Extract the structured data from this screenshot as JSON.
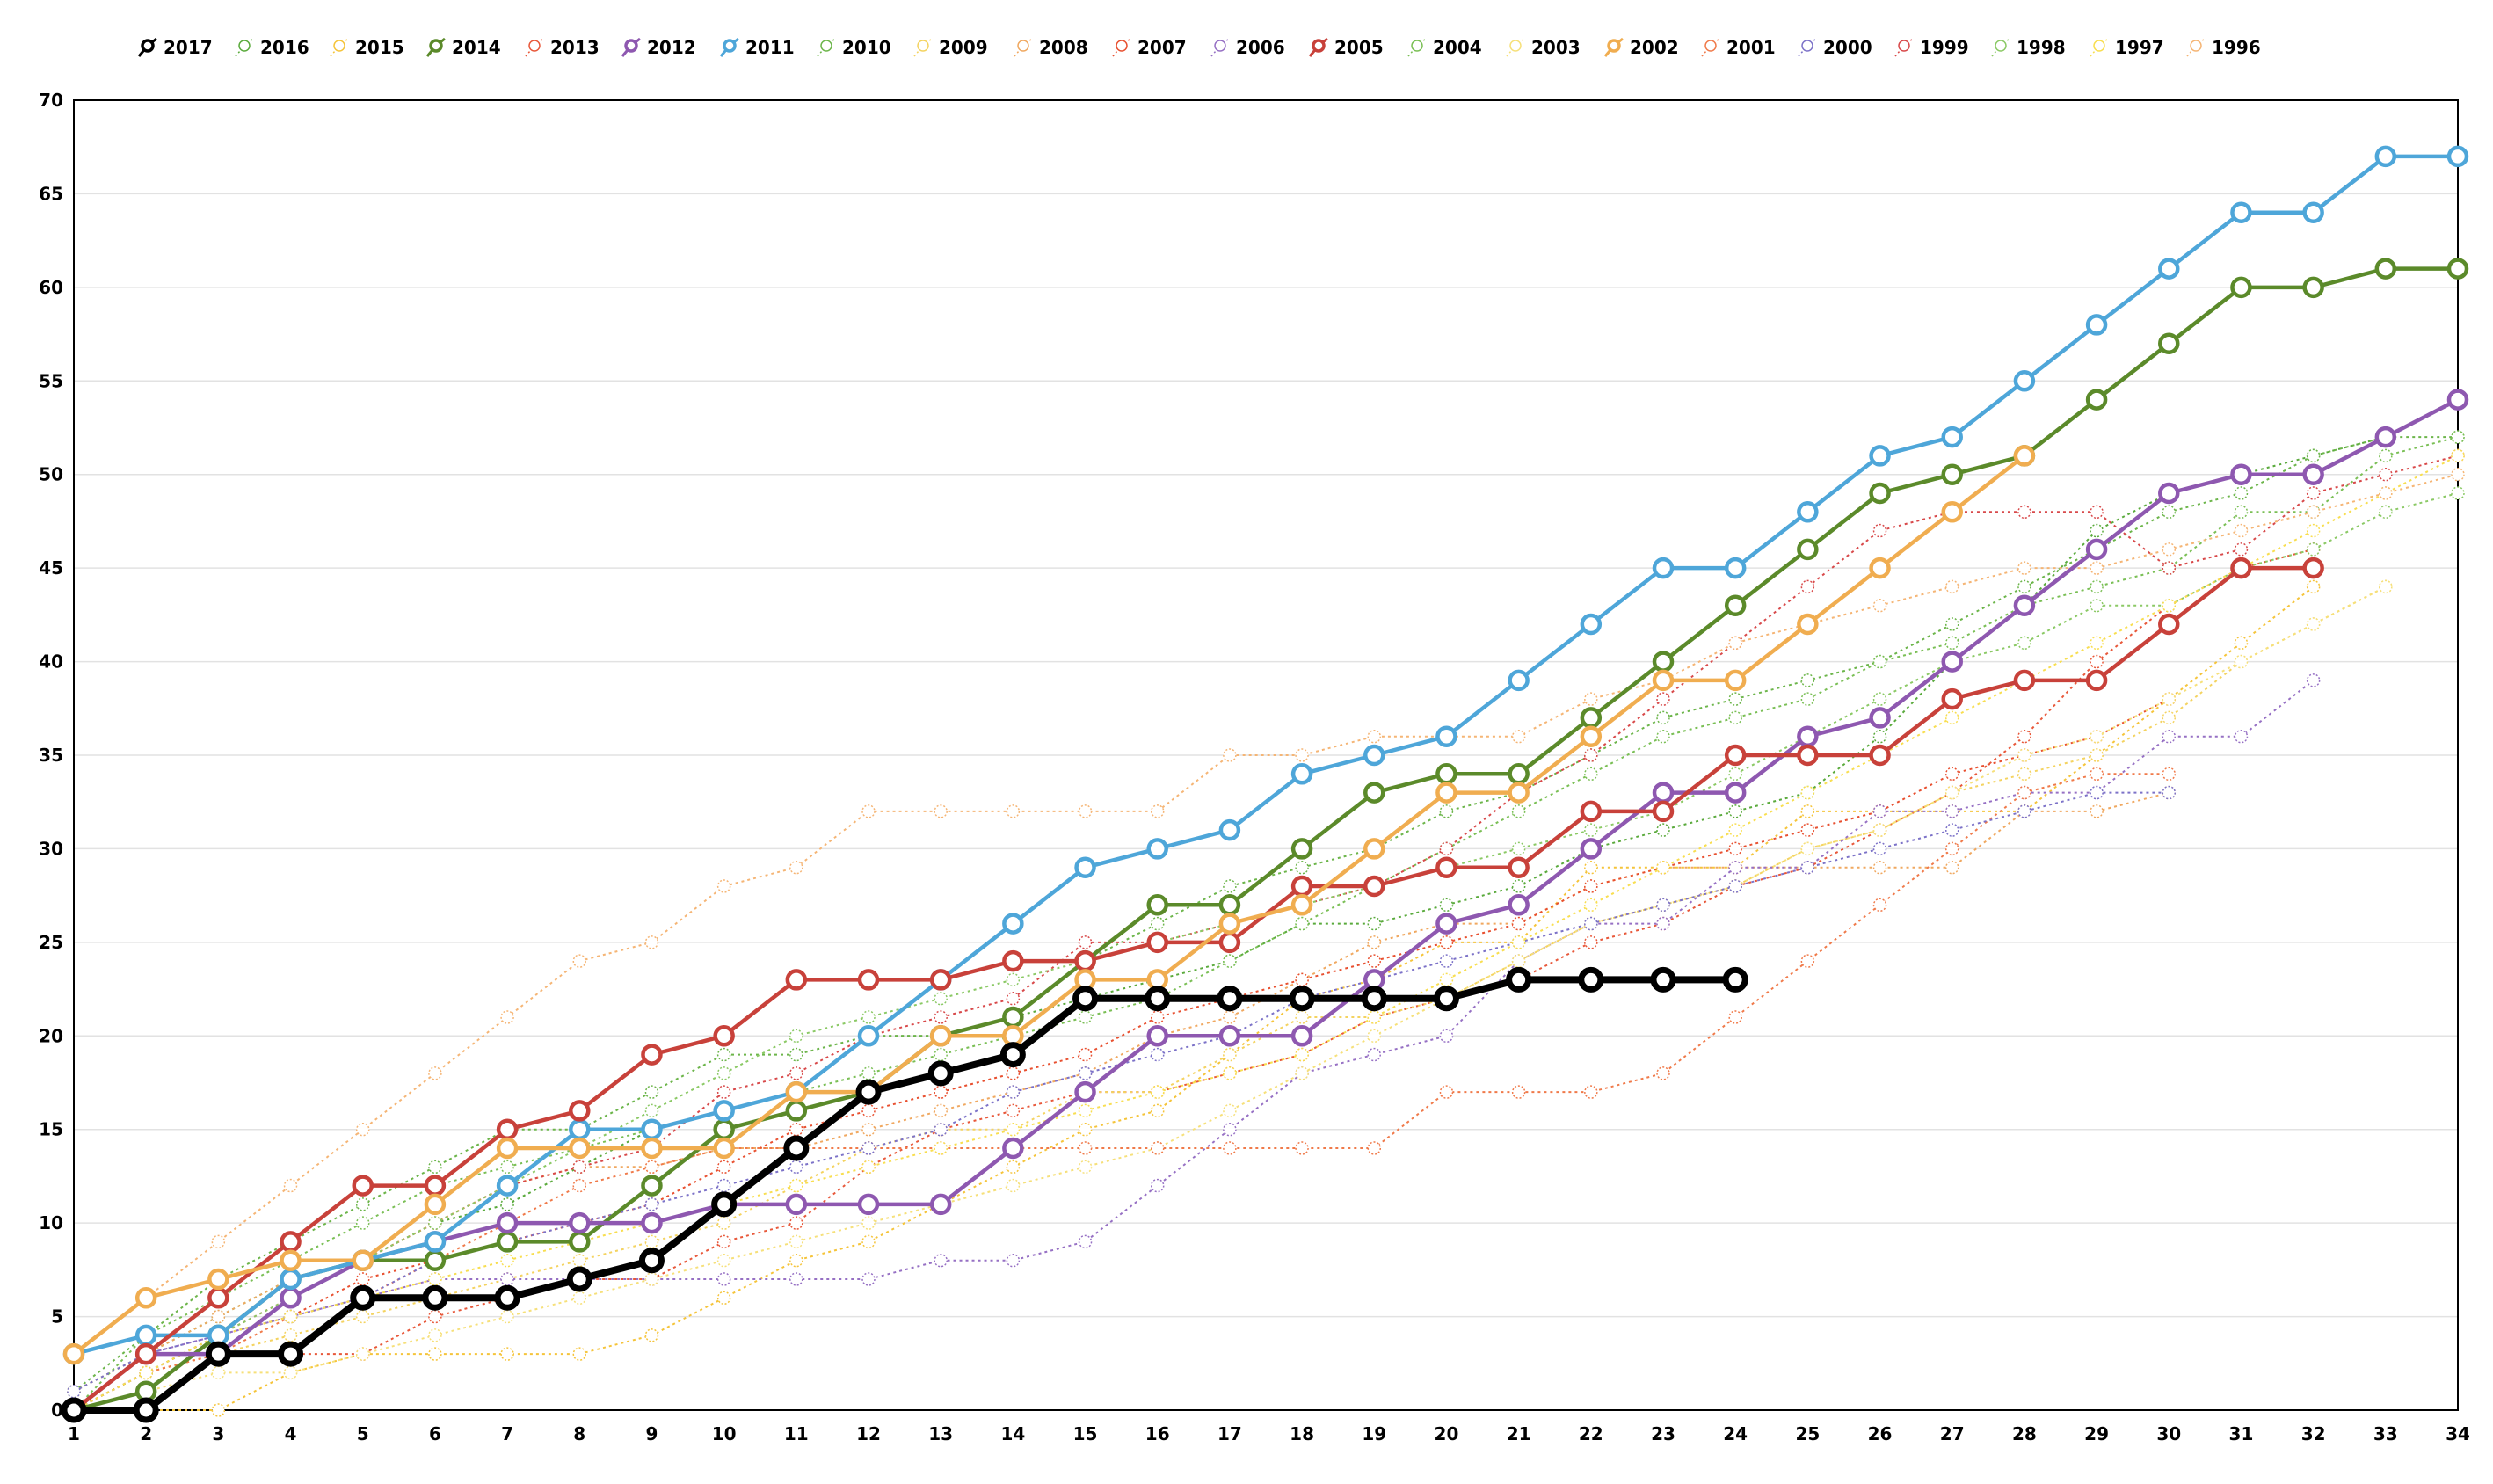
{
  "chart_data": {
    "type": "line",
    "title": "",
    "xlabel": "",
    "ylabel": "",
    "xlim": [
      1,
      34
    ],
    "ylim": [
      0,
      70
    ],
    "x_ticks": [
      1,
      2,
      3,
      4,
      5,
      6,
      7,
      8,
      9,
      10,
      11,
      12,
      13,
      14,
      15,
      16,
      17,
      18,
      19,
      20,
      21,
      22,
      23,
      24,
      25,
      26,
      27,
      28,
      29,
      30,
      31,
      32,
      33,
      34
    ],
    "y_ticks": [
      0,
      5,
      10,
      15,
      20,
      25,
      30,
      35,
      40,
      45,
      50,
      55,
      60,
      65,
      70
    ],
    "grid": "horizontal",
    "legend_placement": "top-center",
    "series": [
      {
        "name": "2017",
        "color": "#000000",
        "style": "bold",
        "values": [
          0,
          0,
          3,
          3,
          6,
          6,
          6,
          7,
          8,
          11,
          14,
          17,
          18,
          19,
          22,
          22,
          22,
          22,
          22,
          22,
          23,
          23,
          23,
          23
        ]
      },
      {
        "name": "2016",
        "color": "#5aaa3c",
        "style": "dotted",
        "values": [
          1,
          3,
          5,
          7,
          8,
          10,
          11,
          13,
          15,
          16,
          17,
          20,
          20,
          21,
          22,
          23,
          24,
          26,
          26,
          27,
          28,
          30,
          31,
          32,
          33,
          36,
          40,
          43,
          47,
          49,
          50,
          51,
          52
        ]
      },
      {
        "name": "2015",
        "color": "#f5c43a",
        "style": "dotted",
        "values": [
          0,
          0,
          0,
          2,
          3,
          3,
          3,
          3,
          4,
          6,
          8,
          9,
          11,
          13,
          15,
          16,
          19,
          22,
          23,
          25,
          25,
          29,
          29,
          29,
          32,
          32,
          32,
          32,
          35,
          38,
          41,
          44
        ]
      },
      {
        "name": "2014",
        "color": "#5b8a2a",
        "style": "bold",
        "values": [
          0,
          1,
          4,
          7,
          8,
          8,
          9,
          9,
          12,
          15,
          16,
          17,
          20,
          21,
          24,
          27,
          27,
          30,
          33,
          34,
          34,
          37,
          40,
          43,
          46,
          49,
          50,
          51,
          54,
          57,
          60,
          60,
          61,
          61
        ]
      },
      {
        "name": "2013",
        "color": "#e8583a",
        "style": "dotted",
        "values": [
          0,
          2,
          3,
          3,
          3,
          5,
          6,
          7,
          7,
          9,
          10,
          13,
          15,
          16,
          17,
          17,
          18,
          19,
          21,
          22,
          23,
          25,
          26,
          28,
          29,
          31,
          33,
          36,
          40,
          43,
          45,
          46
        ]
      },
      {
        "name": "2012",
        "color": "#8e58b0",
        "style": "bold",
        "values": [
          0,
          3,
          3,
          6,
          8,
          9,
          10,
          10,
          10,
          11,
          11,
          11,
          11,
          14,
          17,
          20,
          20,
          20,
          23,
          26,
          27,
          30,
          33,
          33,
          36,
          37,
          40,
          43,
          46,
          49,
          50,
          50,
          52,
          54
        ]
      },
      {
        "name": "2011",
        "color": "#4ea6d9",
        "style": "bold",
        "values": [
          3,
          4,
          4,
          7,
          8,
          9,
          12,
          15,
          15,
          16,
          17,
          20,
          23,
          26,
          29,
          30,
          31,
          34,
          35,
          36,
          39,
          42,
          45,
          45,
          48,
          51,
          52,
          55,
          58,
          61,
          64,
          64,
          67,
          67
        ]
      },
      {
        "name": "2010",
        "color": "#6cb54a",
        "style": "dotted",
        "values": [
          1,
          4,
          7,
          9,
          11,
          13,
          15,
          15,
          17,
          19,
          19,
          20,
          20,
          21,
          24,
          26,
          28,
          29,
          30,
          32,
          33,
          35,
          37,
          38,
          39,
          40,
          42,
          44,
          46,
          48,
          49,
          51,
          52,
          52
        ]
      },
      {
        "name": "2009",
        "color": "#f4d360",
        "style": "dotted",
        "values": [
          0,
          2,
          3,
          4,
          5,
          6,
          7,
          8,
          9,
          10,
          12,
          14,
          15,
          15,
          17,
          17,
          19,
          21,
          21,
          22,
          24,
          26,
          27,
          28,
          30,
          31,
          33,
          34,
          35,
          37,
          40,
          42,
          44
        ]
      },
      {
        "name": "2008",
        "color": "#f0a860",
        "style": "dotted",
        "values": [
          1,
          3,
          5,
          7,
          8,
          10,
          12,
          13,
          13,
          14,
          14,
          15,
          16,
          17,
          18,
          20,
          21,
          23,
          25,
          26,
          26,
          28,
          29,
          29,
          29,
          29,
          29,
          32,
          32,
          33
        ]
      },
      {
        "name": "2007",
        "color": "#e85030",
        "style": "dotted",
        "values": [
          0,
          2,
          4,
          5,
          7,
          8,
          9,
          10,
          11,
          13,
          15,
          16,
          17,
          18,
          19,
          21,
          22,
          23,
          24,
          25,
          26,
          28,
          29,
          30,
          31,
          32,
          34,
          35,
          36,
          38
        ]
      },
      {
        "name": "2006",
        "color": "#9670c4",
        "style": "dotted",
        "values": [
          0,
          3,
          4,
          5,
          6,
          7,
          7,
          7,
          7,
          7,
          7,
          7,
          8,
          8,
          9,
          12,
          15,
          18,
          19,
          20,
          24,
          26,
          26,
          29,
          29,
          32,
          32,
          33,
          33,
          36,
          36,
          39
        ]
      },
      {
        "name": "2005",
        "color": "#c8413a",
        "style": "bold",
        "values": [
          0,
          3,
          6,
          9,
          12,
          12,
          15,
          16,
          19,
          20,
          23,
          23,
          23,
          24,
          24,
          25,
          25,
          28,
          28,
          29,
          29,
          32,
          32,
          35,
          35,
          35,
          38,
          39,
          39,
          42,
          45,
          45
        ]
      },
      {
        "name": "2004",
        "color": "#7abf55",
        "style": "dotted",
        "values": [
          0,
          4,
          6,
          8,
          10,
          12,
          13,
          14,
          15,
          16,
          17,
          18,
          19,
          20,
          21,
          22,
          24,
          26,
          28,
          30,
          32,
          34,
          36,
          37,
          38,
          40,
          41,
          43,
          44,
          45,
          48,
          48,
          51,
          52
        ]
      },
      {
        "name": "2003",
        "color": "#f6e07a",
        "style": "dotted",
        "values": [
          0,
          1,
          2,
          2,
          3,
          4,
          5,
          6,
          7,
          8,
          9,
          10,
          11,
          12,
          13,
          14,
          16,
          18,
          20,
          22,
          24,
          26,
          27,
          28,
          30,
          31,
          33,
          35,
          36,
          38,
          40,
          42,
          44
        ]
      },
      {
        "name": "2002",
        "color": "#f0ad50",
        "style": "bold",
        "values": [
          3,
          6,
          7,
          8,
          8,
          11,
          14,
          14,
          14,
          14,
          17,
          17,
          20,
          20,
          23,
          23,
          26,
          27,
          30,
          33,
          33,
          36,
          39,
          39,
          42,
          45,
          48,
          51
        ]
      },
      {
        "name": "2001",
        "color": "#f07a4a",
        "style": "dotted",
        "values": [
          0,
          2,
          3,
          5,
          6,
          8,
          10,
          12,
          13,
          14,
          14,
          14,
          14,
          14,
          14,
          14,
          14,
          14,
          14,
          17,
          17,
          17,
          18,
          21,
          24,
          27,
          30,
          33,
          34,
          34
        ]
      },
      {
        "name": "2000",
        "color": "#7c72c8",
        "style": "dotted",
        "values": [
          1,
          3,
          4,
          5,
          6,
          8,
          9,
          10,
          11,
          12,
          13,
          14,
          15,
          17,
          18,
          19,
          20,
          22,
          23,
          24,
          25,
          26,
          27,
          28,
          29,
          30,
          31,
          32,
          33,
          33
        ]
      },
      {
        "name": "1999",
        "color": "#d8494a",
        "style": "dotted",
        "values": [
          0,
          2,
          4,
          6,
          8,
          10,
          12,
          13,
          14,
          17,
          18,
          20,
          21,
          22,
          25,
          25,
          26,
          27,
          28,
          30,
          33,
          35,
          38,
          41,
          44,
          47,
          48,
          48,
          48,
          45,
          46,
          49,
          50,
          51
        ]
      },
      {
        "name": "1998",
        "color": "#8bc965",
        "style": "dotted",
        "values": [
          0,
          2,
          4,
          6,
          8,
          10,
          12,
          14,
          16,
          18,
          20,
          21,
          22,
          23,
          24,
          25,
          26,
          27,
          28,
          29,
          30,
          31,
          32,
          34,
          36,
          38,
          40,
          41,
          43,
          43,
          45,
          46,
          48,
          49
        ]
      },
      {
        "name": "1997",
        "color": "#f8de50",
        "style": "dotted",
        "values": [
          0,
          2,
          4,
          5,
          6,
          7,
          8,
          9,
          10,
          11,
          12,
          13,
          14,
          15,
          16,
          17,
          18,
          19,
          21,
          23,
          25,
          27,
          29,
          31,
          33,
          35,
          37,
          39,
          41,
          43,
          45,
          47,
          49,
          51
        ]
      },
      {
        "name": "1996",
        "color": "#f5b575",
        "style": "dotted",
        "values": [
          3,
          6,
          9,
          12,
          15,
          18,
          21,
          24,
          25,
          28,
          29,
          32,
          32,
          32,
          32,
          32,
          35,
          35,
          36,
          36,
          36,
          38,
          39,
          41,
          42,
          43,
          44,
          45,
          45,
          46,
          47,
          48,
          49,
          50
        ]
      }
    ]
  }
}
